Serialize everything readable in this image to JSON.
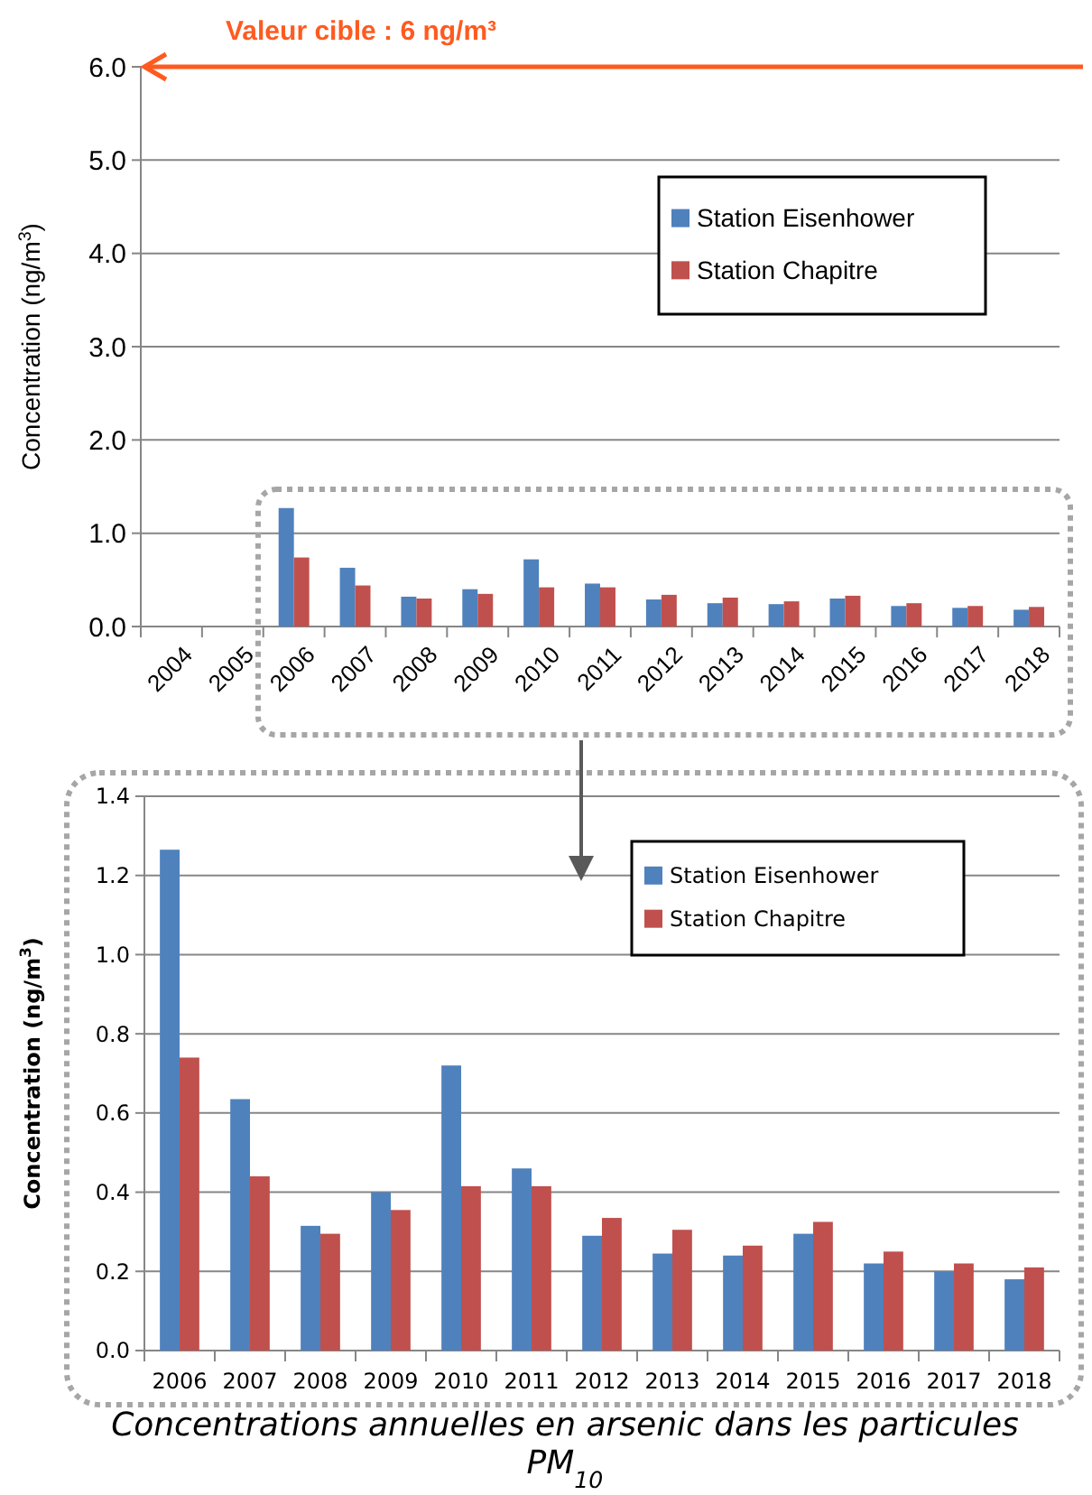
{
  "chart_data": [
    {
      "type": "bar",
      "ylabel": "Concentration (ng/m$^{3}$)",
      "categories": [
        "2004",
        "2005",
        "2006",
        "2007",
        "2008",
        "2009",
        "2010",
        "2011",
        "2012",
        "2013",
        "2014",
        "2015",
        "2016",
        "2017",
        "2018"
      ],
      "series": [
        {
          "name": "Station Eisenhower",
          "color": "#4f81bd",
          "values": [
            null,
            null,
            1.27,
            0.63,
            0.32,
            0.4,
            0.72,
            0.46,
            0.29,
            0.25,
            0.24,
            0.3,
            0.22,
            0.2,
            0.18
          ]
        },
        {
          "name": "Station Chapitre",
          "color": "#c0504d",
          "values": [
            null,
            null,
            0.74,
            0.44,
            0.3,
            0.35,
            0.42,
            0.42,
            0.34,
            0.31,
            0.27,
            0.33,
            0.25,
            0.22,
            0.21
          ]
        }
      ],
      "ylim": [
        0,
        6
      ],
      "yticks": [
        {
          "value": 0,
          "label": "0.0"
        },
        {
          "value": 1,
          "label": "1.0"
        },
        {
          "value": 2,
          "label": "2.0"
        },
        {
          "value": 3,
          "label": "3.0"
        },
        {
          "value": 4,
          "label": "4.0"
        },
        {
          "value": 5,
          "label": "5.0"
        },
        {
          "value": 6,
          "label": "6.0"
        }
      ],
      "ref_lines": [
        {
          "axis": "y",
          "value": 6,
          "label": "Valeur cible : 6 ng/m³",
          "color": "#ff5a1f"
        }
      ],
      "grid": "y",
      "legend": "top right"
    },
    {
      "type": "bar",
      "ylabel": "Concentration (ng/m$^{3}$)",
      "categories": [
        "2006",
        "2007",
        "2008",
        "2009",
        "2010",
        "2011",
        "2012",
        "2013",
        "2014",
        "2015",
        "2016",
        "2017",
        "2018"
      ],
      "series": [
        {
          "name": "Station Eisenhower",
          "color": "#4f81bd",
          "values": [
            1.265,
            0.635,
            0.315,
            0.4,
            0.72,
            0.46,
            0.29,
            0.245,
            0.24,
            0.295,
            0.22,
            0.2,
            0.18
          ]
        },
        {
          "name": "Station Chapitre",
          "color": "#c0504d",
          "values": [
            0.74,
            0.44,
            0.295,
            0.355,
            0.415,
            0.415,
            0.335,
            0.305,
            0.265,
            0.325,
            0.25,
            0.22,
            0.21
          ]
        }
      ],
      "ylim": [
        0,
        1.4
      ],
      "yticks": [
        {
          "value": 0,
          "label": "0.0"
        },
        {
          "value": 0.2,
          "label": "0.2"
        },
        {
          "value": 0.4,
          "label": "0.4"
        },
        {
          "value": 0.6,
          "label": "0.6"
        },
        {
          "value": 0.8,
          "label": "0.8"
        },
        {
          "value": 1,
          "label": "1.0"
        },
        {
          "value": 1.2,
          "label": "1.2"
        },
        {
          "value": 1.4,
          "label": "1.4"
        }
      ],
      "annotations": [
        "Concentrations annuelles en arsenic dans les particules PM$_{10}$"
      ],
      "grid": "y",
      "legend": "top right"
    }
  ]
}
